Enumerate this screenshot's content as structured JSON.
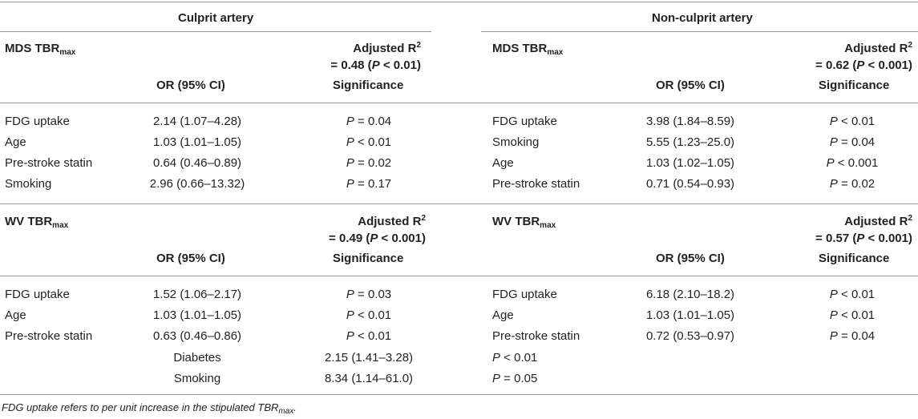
{
  "headers": {
    "culprit": "Culprit artery",
    "nonculprit": "Non-culprit artery",
    "or_col": "OR (95% CI)",
    "sig_col": "Significance"
  },
  "sections": {
    "mds": {
      "label": "MDS TBR",
      "label_sub": "max",
      "culprit_r2": {
        "label": "Adjusted R",
        "sup": "2",
        "line2_pre": "= 0.48 (",
        "p": "P",
        "line2_post": " < 0.01)"
      },
      "nonculprit_r2": {
        "label": "Adjusted R",
        "sup": "2",
        "line2_pre": "= 0.62 (",
        "p": "P",
        "line2_post": " < 0.001)"
      },
      "culprit_rows": [
        {
          "name": "FDG uptake",
          "or": "2.14 (1.07–4.28)",
          "p": "P",
          "sig": " = 0.04"
        },
        {
          "name": "Age",
          "or": "1.03 (1.01–1.05)",
          "p": "P",
          "sig": " < 0.01"
        },
        {
          "name": "Pre-stroke statin",
          "or": "0.64 (0.46–0.89)",
          "p": "P",
          "sig": " = 0.02"
        },
        {
          "name": "Smoking",
          "or": "2.96 (0.66–13.32)",
          "p": "P",
          "sig": " = 0.17"
        }
      ],
      "nonculprit_rows": [
        {
          "name": "FDG uptake",
          "or": "3.98 (1.84–8.59)",
          "p": "P",
          "sig": " < 0.01"
        },
        {
          "name": "Smoking",
          "or": "5.55 (1.23–25.0)",
          "p": "P",
          "sig": " = 0.04"
        },
        {
          "name": "Age",
          "or": "1.03 (1.02–1.05)",
          "p": "P",
          "sig": " < 0.001"
        },
        {
          "name": "Pre-stroke statin",
          "or": "0.71 (0.54–0.93)",
          "p": "P",
          "sig": " = 0.02"
        }
      ]
    },
    "wv": {
      "label": "WV TBR",
      "label_sub": "max",
      "culprit_r2": {
        "label": "Adjusted R",
        "sup": "2",
        "line2_pre": "= 0.49 (",
        "p": "P",
        "line2_post": " < 0.001)"
      },
      "nonculprit_r2": {
        "label": "Adjusted R",
        "sup": "2",
        "line2_pre": "= 0.57 (",
        "p": "P",
        "line2_post": " < 0.001)"
      },
      "culprit_rows": [
        {
          "name": "FDG uptake",
          "or": "1.52 (1.06–2.17)",
          "p": "P",
          "sig": " = 0.03"
        },
        {
          "name": "Age",
          "or": "1.03 (1.01–1.05)",
          "p": "P",
          "sig": " < 0.01"
        },
        {
          "name": "Pre-stroke statin",
          "or": "0.63 (0.46–0.86)",
          "p": "P",
          "sig": " < 0.01"
        }
      ],
      "culprit_extra": [
        {
          "name": "Diabetes",
          "or": "2.15 (1.41–3.28)",
          "p": "P",
          "sig": " < 0.01"
        },
        {
          "name": "Smoking",
          "or": "8.34 (1.14–61.0)",
          "p": "P",
          "sig": " = 0.05"
        }
      ],
      "nonculprit_rows": [
        {
          "name": "FDG uptake",
          "or": "6.18 (2.10–18.2)",
          "p": "P",
          "sig": " < 0.01"
        },
        {
          "name": "Age",
          "or": "1.03 (1.01–1.05)",
          "p": "P",
          "sig": " < 0.01"
        },
        {
          "name": "Pre-stroke statin",
          "or": "0.72 (0.53–0.97)",
          "p": "P",
          "sig": " = 0.04"
        }
      ]
    }
  },
  "footnote": {
    "text": "FDG uptake refers to per unit increase in the stipulated TBR",
    "sub": "max",
    "end": "."
  }
}
